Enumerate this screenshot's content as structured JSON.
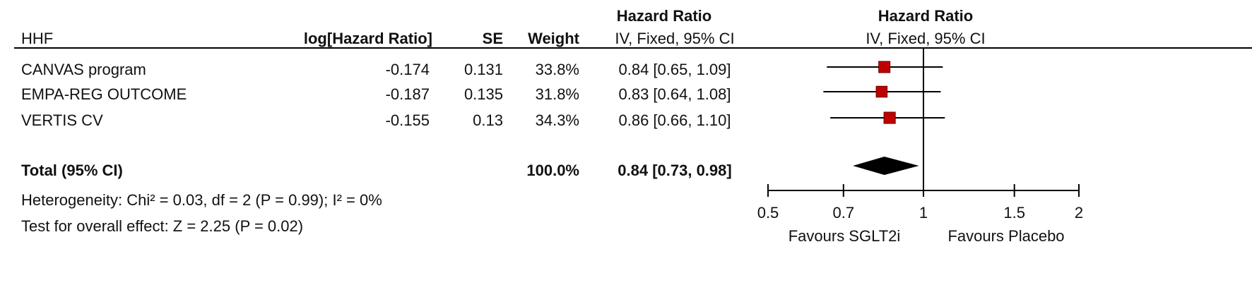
{
  "chart_data": {
    "type": "forest",
    "headers": {
      "study": "HHF",
      "log_hr": "log[Hazard Ratio]",
      "se": "SE",
      "weight": "Weight",
      "hr_line1": "Hazard Ratio",
      "hr_line2": "IV, Fixed, 95% CI"
    },
    "plot_header": [
      "Hazard Ratio",
      "IV, Fixed, 95% CI"
    ],
    "studies": [
      "CANVAS program",
      "EMPA-REG OUTCOME",
      "VERTIS CV"
    ],
    "log_hr": [
      -0.174,
      -0.187,
      -0.155
    ],
    "se": [
      0.131,
      0.135,
      0.13
    ],
    "weight": [
      33.8,
      31.8,
      34.3
    ],
    "weight_labels": [
      "33.8%",
      "31.8%",
      "34.3%"
    ],
    "hr": [
      0.84,
      0.83,
      0.86
    ],
    "ci_lower": [
      0.65,
      0.64,
      0.66
    ],
    "ci_upper": [
      1.09,
      1.08,
      1.1
    ],
    "hr_labels": [
      "0.84 [0.65, 1.09]",
      "0.83 [0.64, 1.08]",
      "0.86 [0.66, 1.10]"
    ],
    "total": {
      "label": "Total (95% CI)",
      "weight": 100,
      "weight_label": "100.0%",
      "hr": 0.84,
      "ci_lower": 0.73,
      "ci_upper": 0.98,
      "hr_label": "0.84 [0.73, 0.98]"
    },
    "heterogeneity": "Heterogeneity: Chi² = 0.03, df = 2 (P = 0.99); I² = 0%",
    "overall_effect": "Test for overall effect: Z = 2.25 (P = 0.02)",
    "xlim": [
      0.5,
      2
    ],
    "xticks": [
      0.5,
      0.7,
      1,
      1.5,
      2
    ],
    "log_scale": true,
    "reference": 1,
    "favours_left": "Favours SGLT2i",
    "favours_right": "Favours Placebo",
    "marker_color": "#c00000"
  }
}
